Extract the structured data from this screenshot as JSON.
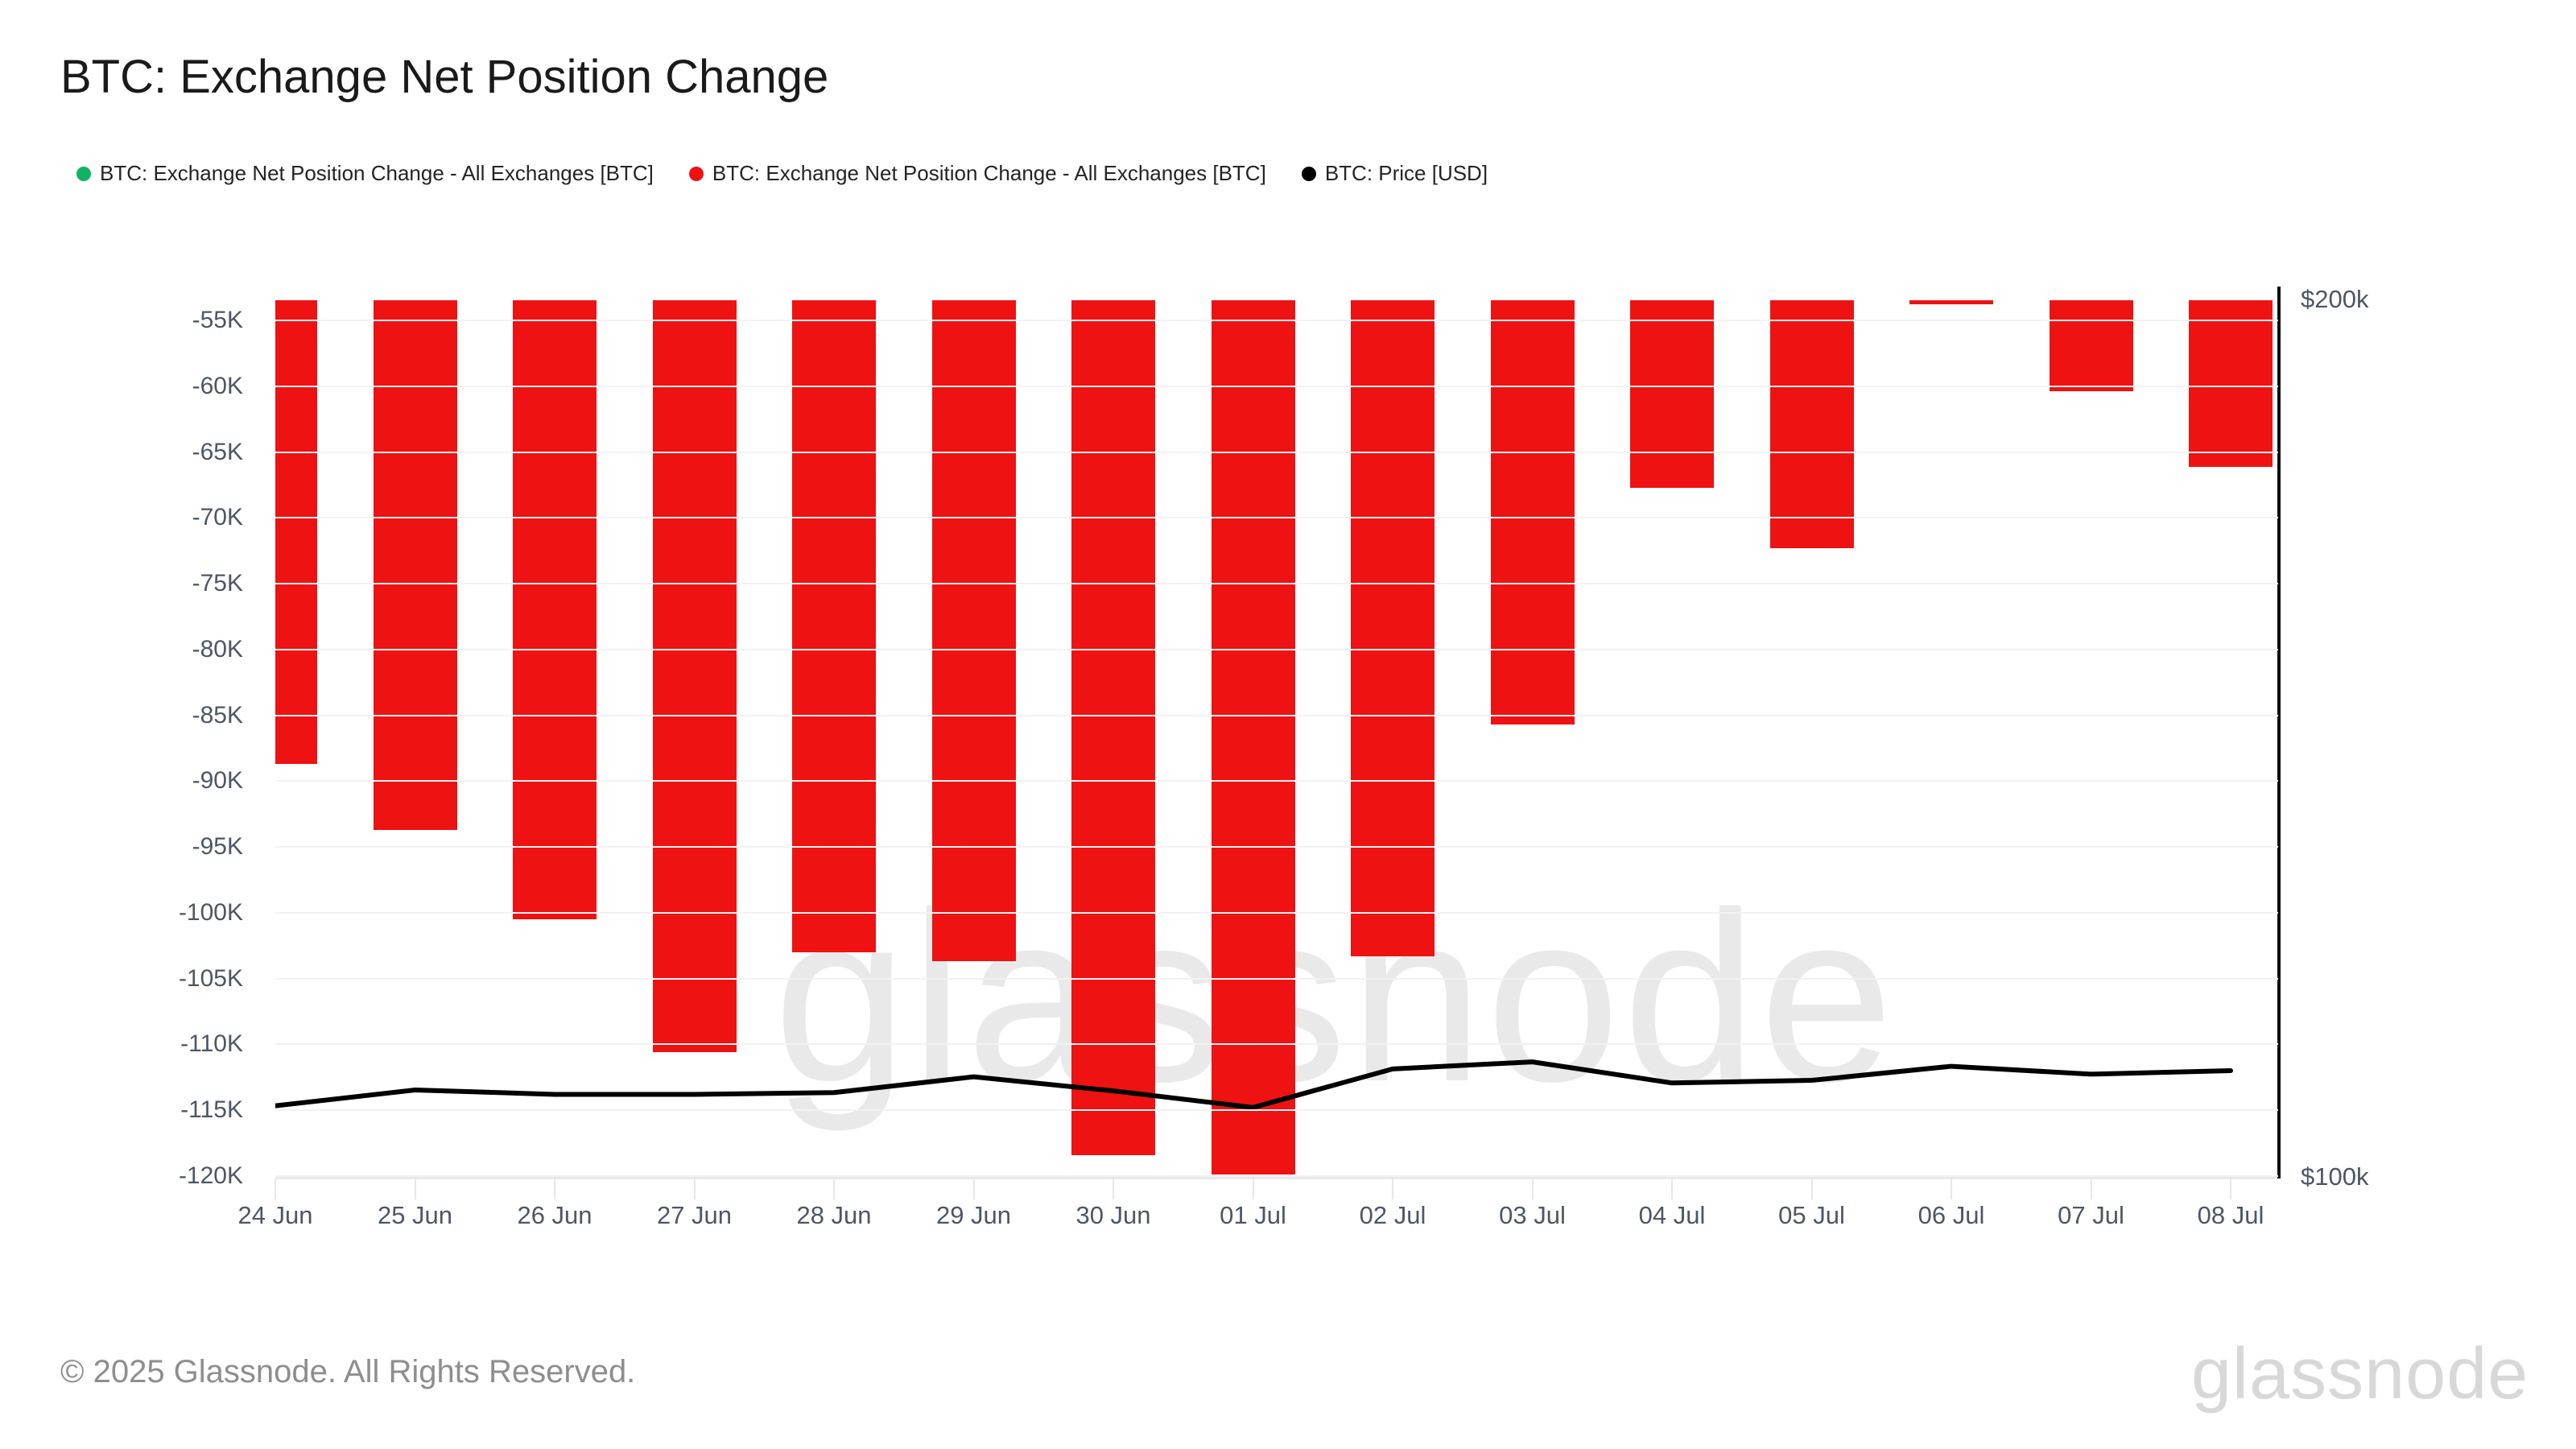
{
  "title": "BTC: Exchange Net Position Change",
  "legend": {
    "items": [
      {
        "label": "BTC: Exchange Net Position Change - All Exchanges [BTC]",
        "color": "#10b364",
        "marker": "dot"
      },
      {
        "label": "BTC: Exchange Net Position Change - All Exchanges [BTC]",
        "color": "#ee1212",
        "marker": "dot"
      },
      {
        "label": "BTC: Price [USD]",
        "color": "#000000",
        "marker": "dot"
      }
    ]
  },
  "chart_data": {
    "type": "bar",
    "title": "BTC: Exchange Net Position Change",
    "categories": [
      "24 Jun",
      "25 Jun",
      "26 Jun",
      "27 Jun",
      "28 Jun",
      "29 Jun",
      "30 Jun",
      "01 Jul",
      "02 Jul",
      "03 Jul",
      "04 Jul",
      "05 Jul",
      "06 Jul",
      "07 Jul",
      "08 Jul"
    ],
    "series": [
      {
        "name": "BTC: Exchange Net Position Change - All Exchanges [BTC]",
        "type": "bar",
        "axis": "left",
        "color": "#10b364",
        "unit": "BTC",
        "visible": false,
        "values": []
      },
      {
        "name": "BTC: Exchange Net Position Change - All Exchanges [BTC]",
        "type": "bar",
        "axis": "left",
        "color": "#ee1212",
        "unit": "BTC",
        "values": [
          -88700,
          -93700,
          -100500,
          -110600,
          -103000,
          -103700,
          -118400,
          -119900,
          -103300,
          -85700,
          -67700,
          -72300,
          -53800,
          -60400,
          -66100
        ]
      },
      {
        "name": "BTC: Price [USD]",
        "type": "line",
        "axis": "right",
        "color": "#000000",
        "unit": "USD",
        "values": [
          108200,
          110000,
          109500,
          109500,
          109700,
          111500,
          109900,
          108000,
          112400,
          113200,
          110800,
          111100,
          112700,
          111800,
          112200
        ]
      }
    ],
    "left_axis": {
      "unit": "BTC",
      "tick_labels": [
        "-55K",
        "-60K",
        "-65K",
        "-70K",
        "-75K",
        "-80K",
        "-85K",
        "-90K",
        "-95K",
        "-100K",
        "-105K",
        "-110K",
        "-115K",
        "-120K"
      ],
      "tick_values": [
        -55000,
        -60000,
        -65000,
        -70000,
        -75000,
        -80000,
        -85000,
        -90000,
        -95000,
        -100000,
        -105000,
        -110000,
        -115000,
        -120000
      ],
      "visible_range": [
        -120120,
        -53470
      ]
    },
    "right_axis": {
      "unit": "USD",
      "tick_labels": [
        "$200k",
        "$100k"
      ],
      "tick_values": [
        200000,
        100000
      ],
      "range": [
        100000,
        200000
      ]
    },
    "grid": true,
    "legend_position": "top"
  },
  "watermark": "glassnode",
  "footer": {
    "copyright": "© 2025 Glassnode. All Rights Reserved.",
    "logo": "glassnode"
  },
  "colors": {
    "bar_negative": "#ee1212",
    "series_green": "#10b364",
    "price_line": "#000000",
    "gridline": "#f2f2f4",
    "axis_line": "#0d0d0d",
    "tick_label": "#4d5666",
    "watermark": "#e9e9e9",
    "footer_text": "#8e8e8e",
    "footer_logo": "#d8d8d8"
  }
}
